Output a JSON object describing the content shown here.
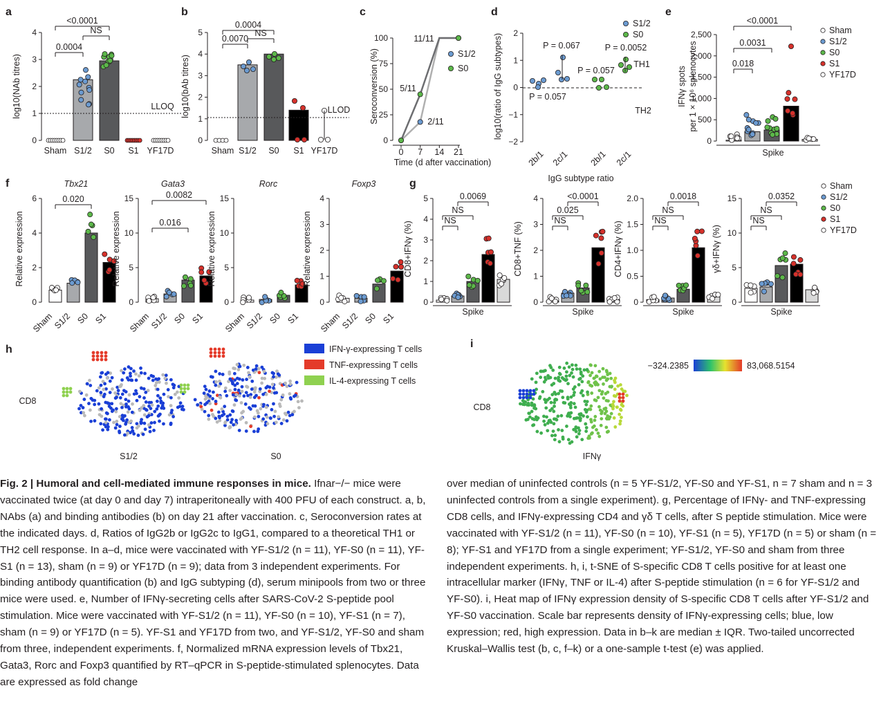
{
  "figure": {
    "panel_letters": [
      "a",
      "b",
      "c",
      "d",
      "e",
      "f",
      "g",
      "h",
      "i"
    ],
    "colors": {
      "sham": "#ffffff",
      "s12": "#a7a9ac",
      "s0": "#58595b",
      "s1": "#000000",
      "yf17d": "#d9d9d9",
      "blue_dot": "#6b9bd1",
      "green_dot": "#5cb84a",
      "red_dot": "#d6312b"
    }
  },
  "panel_a": {
    "ylabel": "log10(NAb titres)",
    "yticks": [
      "0",
      "1",
      "2",
      "3",
      "4"
    ],
    "categories": [
      "Sham",
      "S1/2",
      "S0",
      "S1",
      "YF17D"
    ],
    "medians": [
      0,
      2.25,
      2.95,
      0,
      0
    ],
    "lloq_label": "LLOQ",
    "lloq_value": 1,
    "comparisons": [
      {
        "label": "<0.0001"
      },
      {
        "label": "0.0004"
      },
      {
        "label": "NS"
      }
    ]
  },
  "panel_b": {
    "ylabel": "log10(bAb titres)",
    "yticks": [
      "0",
      "1",
      "2",
      "3",
      "4",
      "5"
    ],
    "categories": [
      "Sham",
      "S1/2",
      "S0",
      "S1",
      "YF17D"
    ],
    "medians": [
      0,
      3.5,
      4.0,
      1.4,
      0
    ],
    "lloq_label": "LLOD",
    "comparisons": [
      {
        "label": "0.0004"
      },
      {
        "label": "0.0070"
      },
      {
        "label": "NS"
      }
    ]
  },
  "panel_c": {
    "ylabel": "Seroconversion (%)",
    "xlabel": "Time (d after vaccination)",
    "yticks": [
      "0",
      "25",
      "50",
      "75",
      "100"
    ],
    "xticks": [
      "0",
      "7",
      "14",
      "21"
    ],
    "series": [
      {
        "name": "S1/2",
        "x": [
          0,
          7,
          14,
          21
        ],
        "y": [
          0,
          18,
          100,
          100
        ]
      },
      {
        "name": "S0",
        "x": [
          0,
          7,
          14,
          21
        ],
        "y": [
          0,
          45,
          100,
          100
        ]
      }
    ],
    "annotations": [
      "11/11",
      "5/11",
      "2/11"
    ]
  },
  "panel_d": {
    "ylabel": "log10(ratio of IgG subtypes)",
    "xlabel": "IgG subtype ratio",
    "yticks": [
      "−2",
      "−1",
      "0",
      "1",
      "2"
    ],
    "xticks": [
      "2b/1",
      "2c/1",
      "2b/1",
      "2c/1"
    ],
    "legend": [
      "S1/2",
      "S0"
    ],
    "p_values": [
      "P = 0.067",
      "P = 0.0052",
      "P = 0.057",
      "P = 0.057"
    ],
    "th1": "TH1",
    "th2": "TH2"
  },
  "panel_e": {
    "ylabel": "IFNγ spots per 1 × 10^6 splenocytes",
    "xlabel": "Spike",
    "yticks": [
      "0",
      "500",
      "1,000",
      "1,500",
      "2,000",
      "2,500"
    ],
    "legend": [
      "Sham",
      "S1/2",
      "S0",
      "S1",
      "YF17D"
    ],
    "medians": [
      20,
      220,
      260,
      820,
      40
    ],
    "comparisons": [
      {
        "label": "<0.0001"
      },
      {
        "label": "0.0031"
      },
      {
        "label": "0.018"
      }
    ]
  },
  "panel_f": {
    "ylabel": "Relative expression",
    "categories": [
      "Sham",
      "S1/2",
      "S0",
      "S1"
    ],
    "genes": [
      {
        "name": "Tbx21",
        "yticks": [
          "0",
          "2",
          "4",
          "6"
        ],
        "medians": [
          0.7,
          1.1,
          4.0,
          2.3
        ],
        "comparisons": [
          "0.020"
        ]
      },
      {
        "name": "Gata3",
        "yticks": [
          "0",
          "5",
          "10",
          "15"
        ],
        "medians": [
          0.5,
          1.2,
          3.2,
          3.8
        ],
        "comparisons": [
          "0.016",
          "0.0082"
        ]
      },
      {
        "name": "Rorc",
        "yticks": [
          "0",
          "5",
          "10",
          "15"
        ],
        "medians": [
          0.3,
          0.4,
          1.0,
          2.5
        ],
        "comparisons": []
      },
      {
        "name": "Foxp3",
        "yticks": [
          "0",
          "1",
          "2",
          "3",
          "4"
        ],
        "medians": [
          0.15,
          0.15,
          0.7,
          1.2
        ],
        "comparisons": []
      }
    ]
  },
  "panel_g": {
    "xlabel": "Spike",
    "legend": [
      "Sham",
      "S1/2",
      "S0",
      "S1",
      "YF17D"
    ],
    "subplots": [
      {
        "ylabel": "CD8+IFNγ (%)",
        "yticks": [
          "0",
          "1",
          "2",
          "3",
          "4",
          "5"
        ],
        "medians": [
          0.1,
          0.3,
          1.0,
          2.3,
          1.1
        ],
        "comparisons": [
          "0.0069",
          "NS",
          "NS"
        ]
      },
      {
        "ylabel": "CD8+TNF (%)",
        "yticks": [
          "0",
          "1",
          "2",
          "3",
          "4"
        ],
        "medians": [
          0.05,
          0.35,
          0.55,
          2.1,
          0.1
        ],
        "comparisons": [
          "<0.0001",
          "0.025",
          "NS"
        ]
      },
      {
        "ylabel": "CD4+IFNγ (%)",
        "yticks": [
          "0",
          "0.5",
          "1.0",
          "1.5",
          "2.0"
        ],
        "medians": [
          0.05,
          0.08,
          0.25,
          1.05,
          0.1
        ],
        "comparisons": [
          "0.0018",
          "NS",
          "NS"
        ]
      },
      {
        "ylabel": "γδ+IFNγ (%)",
        "yticks": [
          "0",
          "5",
          "10",
          "15"
        ],
        "medians": [
          2.0,
          2.2,
          5.3,
          5.5,
          1.8
        ],
        "comparisons": [
          "0.0352",
          "NS",
          "NS"
        ]
      }
    ]
  },
  "panel_h": {
    "legend": [
      "IFN-γ-expressing T cells",
      "TNF-expressing T cells",
      "IL-4-expressing T cells"
    ],
    "axis_label": "CD8",
    "maps": [
      "S1/2",
      "S0"
    ]
  },
  "panel_i": {
    "axis_label": "CD8",
    "map_label": "IFNγ",
    "scale_min": "−324.2385",
    "scale_max": "83,068.5154"
  },
  "caption": {
    "fig_label": "Fig. 2 | Humoral and cell-mediated immune responses in mice.",
    "left": "Ifnar−/− mice were vaccinated twice (at day 0 and day 7) intraperitoneally with 400 PFU of each construct. a, b, NAbs (a) and binding antibodies (b) on day 21 after vaccination. c, Seroconversion rates at the indicated days. d, Ratios of IgG2b or IgG2c to IgG1, compared to a theoretical TH1 or TH2 cell response. In a–d, mice were vaccinated with YF-S1/2 (n = 11), YF-S0 (n = 11), YF-S1 (n = 13), sham (n = 9) or YF17D (n = 9); data from 3 independent experiments. For binding antibody quantification (b) and IgG subtyping (d), serum minipools from two or three mice were used. e, Number of IFNγ-secreting cells after SARS-CoV-2 S-peptide pool stimulation. Mice were vaccinated with YF-S1/2 (n = 11), YF-S0 (n = 10), YF-S1 (n = 7), sham (n = 9) or YF17D (n = 5). YF-S1 and YF17D from two, and YF-S1/2, YF-S0 and sham from three, independent experiments. f, Normalized mRNA expression levels of Tbx21, Gata3, Rorc and Foxp3 quantified by RT–qPCR in S-peptide-stimulated splenocytes. Data are expressed as fold change",
    "right": "over median of uninfected controls (n = 5 YF-S1/2, YF-S0 and YF-S1, n = 7 sham and n = 3 uninfected controls from a single experiment). g, Percentage of IFNγ- and TNF-expressing CD8 cells, and IFNγ-expressing CD4 and γδ T cells, after S peptide stimulation. Mice were vaccinated with YF-S1/2 (n = 11), YF-S0 (n = 10), YF-S1 (n = 5), YF17D (n = 5) or sham (n = 8); YF-S1 and YF17D from a single experiment; YF-S1/2, YF-S0 and sham from three independent experiments. h, i, t-SNE of S-specific CD8 T cells positive for at least one intracellular marker (IFNγ, TNF or IL-4) after S-peptide stimulation (n = 6 for YF-S1/2 and YF-S0). i, Heat map of IFNγ expression density of S-specific CD8 T cells after YF-S1/2 and YF-S0 vaccination. Scale bar represents density of IFNγ-expressing cells; blue, low expression; red, high expression. Data in b–k are median ± IQR. Two-tailed uncorrected Kruskal–Wallis test (b, c, f–k) or a one-sample t-test (e) was applied."
  }
}
